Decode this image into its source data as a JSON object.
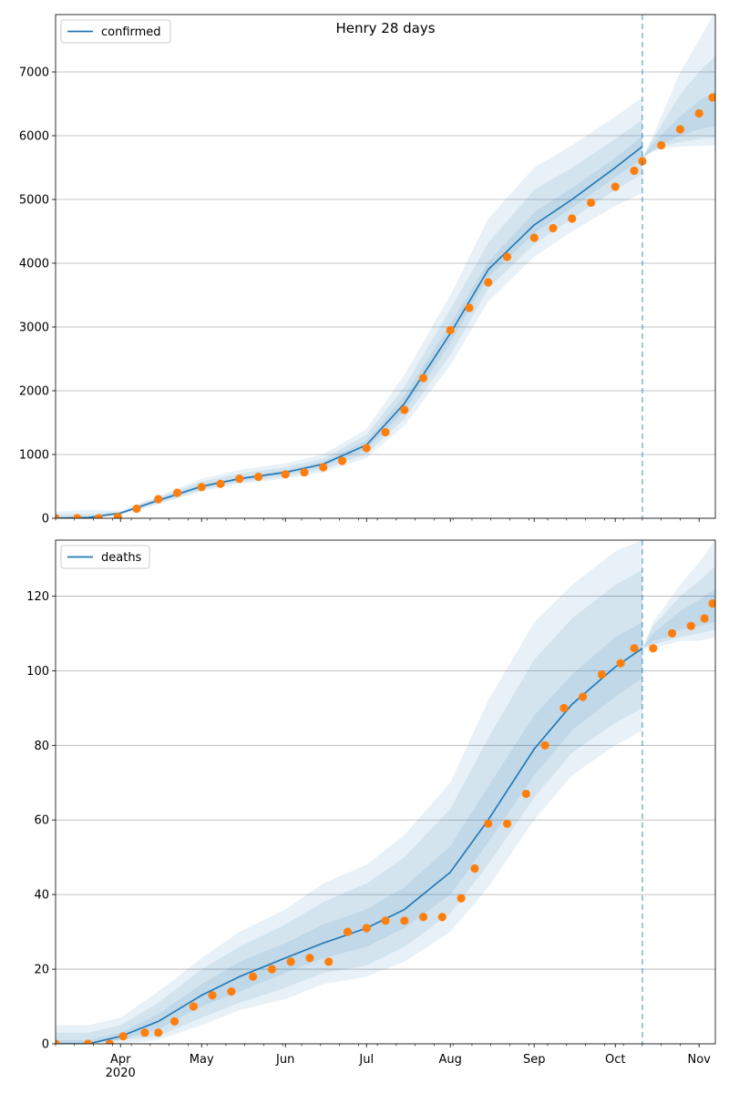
{
  "colors": {
    "model": "#1f77b4",
    "observed": "#ff7f0e",
    "band": "#1f77b4",
    "grid": "#b0b0b0"
  },
  "chart_data": [
    {
      "type": "line",
      "title": "Henry 28 days",
      "xlabel": "",
      "ylabel": "",
      "legend": {
        "label": "confirmed",
        "placement": "top-left"
      },
      "grid": "horizontal",
      "xlim": [
        "2020-03-08",
        "2020-11-07"
      ],
      "ylim": [
        0,
        7900
      ],
      "yticks": [
        0,
        1000,
        2000,
        3000,
        4000,
        5000,
        6000,
        7000
      ],
      "forecast_start": "2020-10-11",
      "model_fit": {
        "name": "confirmed",
        "x": [
          "2020-03-08",
          "2020-03-20",
          "2020-04-01",
          "2020-04-15",
          "2020-05-01",
          "2020-05-15",
          "2020-06-01",
          "2020-06-15",
          "2020-07-01",
          "2020-07-15",
          "2020-08-01",
          "2020-08-15",
          "2020-09-01",
          "2020-09-15",
          "2020-10-01",
          "2020-10-11"
        ],
        "y": [
          0,
          10,
          80,
          280,
          500,
          620,
          720,
          850,
          1150,
          1800,
          2900,
          3900,
          4600,
          5000,
          5500,
          5830
        ],
        "bands": [
          {
            "lower": [
              0,
              0,
              50,
              220,
              420,
              540,
              620,
              720,
              950,
              1450,
              2400,
              3400,
              4100,
              4500,
              4900,
              5100
            ],
            "upper": [
              100,
              130,
              120,
              350,
              620,
              760,
              860,
              1000,
              1400,
              2250,
              3500,
              4700,
              5500,
              5850,
              6300,
              6600
            ]
          },
          {
            "lower": [
              0,
              0,
              60,
              235,
              445,
              565,
              655,
              765,
              1010,
              1560,
              2560,
              3600,
              4300,
              4700,
              5150,
              5400
            ],
            "upper": [
              60,
              70,
              105,
              325,
              575,
              700,
              800,
              935,
              1310,
              2060,
              3280,
              4320,
              5150,
              5500,
              5950,
              6250
            ]
          },
          {
            "lower": [
              0,
              0,
              70,
              255,
              470,
              595,
              690,
              810,
              1080,
              1680,
              2750,
              3780,
              4470,
              4870,
              5350,
              5650
            ],
            "upper": [
              30,
              30,
              95,
              305,
              530,
              645,
              750,
              890,
              1220,
              1920,
              3050,
              4020,
              4800,
              5180,
              5650,
              6000
            ]
          }
        ]
      },
      "forecast": {
        "x": [
          "2020-10-11",
          "2020-10-15",
          "2020-10-20",
          "2020-10-25",
          "2020-11-01",
          "2020-11-07"
        ],
        "y": [
          5650,
          5800,
          5950,
          6080,
          6220,
          6350
        ],
        "bands": [
          {
            "lower": [
              5650,
              5750,
              5810,
              5830,
              5840,
              5850
            ],
            "upper": [
              5650,
              6000,
              6500,
              7000,
              7500,
              7950
            ]
          },
          {
            "lower": [
              5650,
              5760,
              5850,
              5900,
              5950,
              5970
            ],
            "upper": [
              5650,
              5950,
              6300,
              6650,
              7000,
              7250
            ]
          },
          {
            "lower": [
              5650,
              5780,
              5900,
              6000,
              6100,
              6150
            ],
            "upper": [
              5650,
              5880,
              6100,
              6300,
              6550,
              6700
            ]
          }
        ]
      },
      "observed": {
        "x": [
          "2020-03-08",
          "2020-03-16",
          "2020-03-24",
          "2020-03-31",
          "2020-04-07",
          "2020-04-15",
          "2020-04-22",
          "2020-05-01",
          "2020-05-08",
          "2020-05-15",
          "2020-05-22",
          "2020-06-01",
          "2020-06-08",
          "2020-06-15",
          "2020-06-22",
          "2020-07-01",
          "2020-07-08",
          "2020-07-15",
          "2020-07-22",
          "2020-08-01",
          "2020-08-08",
          "2020-08-15",
          "2020-08-22",
          "2020-09-01",
          "2020-09-08",
          "2020-09-15",
          "2020-09-22",
          "2020-10-01",
          "2020-10-08",
          "2020-10-11",
          "2020-10-18",
          "2020-10-25",
          "2020-11-01",
          "2020-11-06"
        ],
        "y": [
          0,
          0,
          0,
          20,
          150,
          300,
          400,
          490,
          540,
          620,
          650,
          690,
          720,
          800,
          900,
          1100,
          1350,
          1700,
          2200,
          2950,
          3300,
          3700,
          4100,
          4400,
          4550,
          4700,
          4950,
          5200,
          5450,
          5600,
          5850,
          6100,
          6350,
          6600
        ]
      }
    },
    {
      "type": "line",
      "title": "",
      "xlabel": "",
      "ylabel": "",
      "legend": {
        "label": "deaths",
        "placement": "top-left"
      },
      "grid": "horizontal",
      "xlim": [
        "2020-03-08",
        "2020-11-07"
      ],
      "ylim": [
        0,
        135
      ],
      "yticks": [
        0,
        20,
        40,
        60,
        80,
        100,
        120
      ],
      "xticks": [
        {
          "date": "2020-04-01",
          "label": "Apr",
          "sub": "2020"
        },
        {
          "date": "2020-05-01",
          "label": "May"
        },
        {
          "date": "2020-06-01",
          "label": "Jun"
        },
        {
          "date": "2020-07-01",
          "label": "Jul"
        },
        {
          "date": "2020-08-01",
          "label": "Aug"
        },
        {
          "date": "2020-09-01",
          "label": "Sep"
        },
        {
          "date": "2020-10-01",
          "label": "Oct"
        },
        {
          "date": "2020-11-01",
          "label": "Nov"
        }
      ],
      "forecast_start": "2020-10-11",
      "model_fit": {
        "name": "deaths",
        "x": [
          "2020-03-08",
          "2020-03-20",
          "2020-04-01",
          "2020-04-15",
          "2020-05-01",
          "2020-05-15",
          "2020-06-01",
          "2020-06-15",
          "2020-07-01",
          "2020-07-15",
          "2020-08-01",
          "2020-08-15",
          "2020-09-01",
          "2020-09-15",
          "2020-10-01",
          "2020-10-11"
        ],
        "y": [
          0,
          0,
          2,
          6,
          13,
          18,
          23,
          27,
          31,
          36,
          46,
          60,
          79,
          91,
          101,
          106
        ],
        "bands": [
          {
            "lower": [
              0,
              0,
              0,
              1,
              5,
              9,
              12,
              16,
              18,
              22,
              30,
              42,
              60,
              72,
              80,
              84
            ],
            "upper": [
              5,
              5,
              7,
              14,
              23,
              30,
              36,
              43,
              48,
              56,
              70,
              92,
              113,
              123,
              132,
              135
            ]
          },
          {
            "lower": [
              0,
              0,
              1,
              2,
              7,
              11,
              15,
              19,
              21,
              26,
              35,
              48,
              66,
              78,
              86,
              90
            ],
            "upper": [
              3,
              3,
              5,
              11,
              20,
              26,
              32,
              38,
              43,
              50,
              63,
              82,
              103,
              114,
              123,
              127
            ]
          },
          {
            "lower": [
              0,
              0,
              1,
              4,
              10,
              14,
              19,
              23,
              26,
              31,
              40,
              54,
              72,
              84,
              93,
              98
            ],
            "upper": [
              1,
              1,
              3,
              8,
              16,
              22,
              27,
              32,
              36,
              42,
              53,
              69,
              88,
              99,
              109,
              113
            ]
          }
        ]
      },
      "forecast": {
        "x": [
          "2020-10-11",
          "2020-10-15",
          "2020-10-20",
          "2020-10-25",
          "2020-11-01",
          "2020-11-07"
        ],
        "y": [
          106,
          109,
          111,
          113,
          115,
          117
        ],
        "bands": [
          {
            "lower": [
              106,
              106,
              107,
              108,
              108,
              109
            ],
            "upper": [
              106,
              113,
              118,
              123,
              129,
              135
            ]
          },
          {
            "lower": [
              106,
              107,
              108,
              109,
              110,
              111
            ],
            "upper": [
              106,
              112,
              116,
              120,
              124,
              128
            ]
          },
          {
            "lower": [
              106,
              108,
              109,
              111,
              112,
              113
            ],
            "upper": [
              106,
              110,
              113,
              116,
              119,
              122
            ]
          }
        ]
      },
      "observed": {
        "x": [
          "2020-03-08",
          "2020-03-20",
          "2020-03-28",
          "2020-04-02",
          "2020-04-10",
          "2020-04-15",
          "2020-04-21",
          "2020-04-28",
          "2020-05-05",
          "2020-05-12",
          "2020-05-20",
          "2020-05-27",
          "2020-06-03",
          "2020-06-10",
          "2020-06-17",
          "2020-06-24",
          "2020-07-01",
          "2020-07-08",
          "2020-07-15",
          "2020-07-22",
          "2020-07-29",
          "2020-08-05",
          "2020-08-10",
          "2020-08-15",
          "2020-08-22",
          "2020-08-29",
          "2020-09-05",
          "2020-09-12",
          "2020-09-19",
          "2020-09-26",
          "2020-10-03",
          "2020-10-08",
          "2020-10-15",
          "2020-10-22",
          "2020-10-29",
          "2020-11-03",
          "2020-11-06"
        ],
        "y": [
          0,
          0,
          0,
          2,
          3,
          3,
          6,
          10,
          13,
          14,
          18,
          20,
          22,
          23,
          22,
          30,
          31,
          33,
          33,
          34,
          34,
          39,
          47,
          59,
          59,
          67,
          80,
          90,
          93,
          99,
          102,
          106,
          106,
          110,
          112,
          114,
          118
        ]
      }
    }
  ]
}
